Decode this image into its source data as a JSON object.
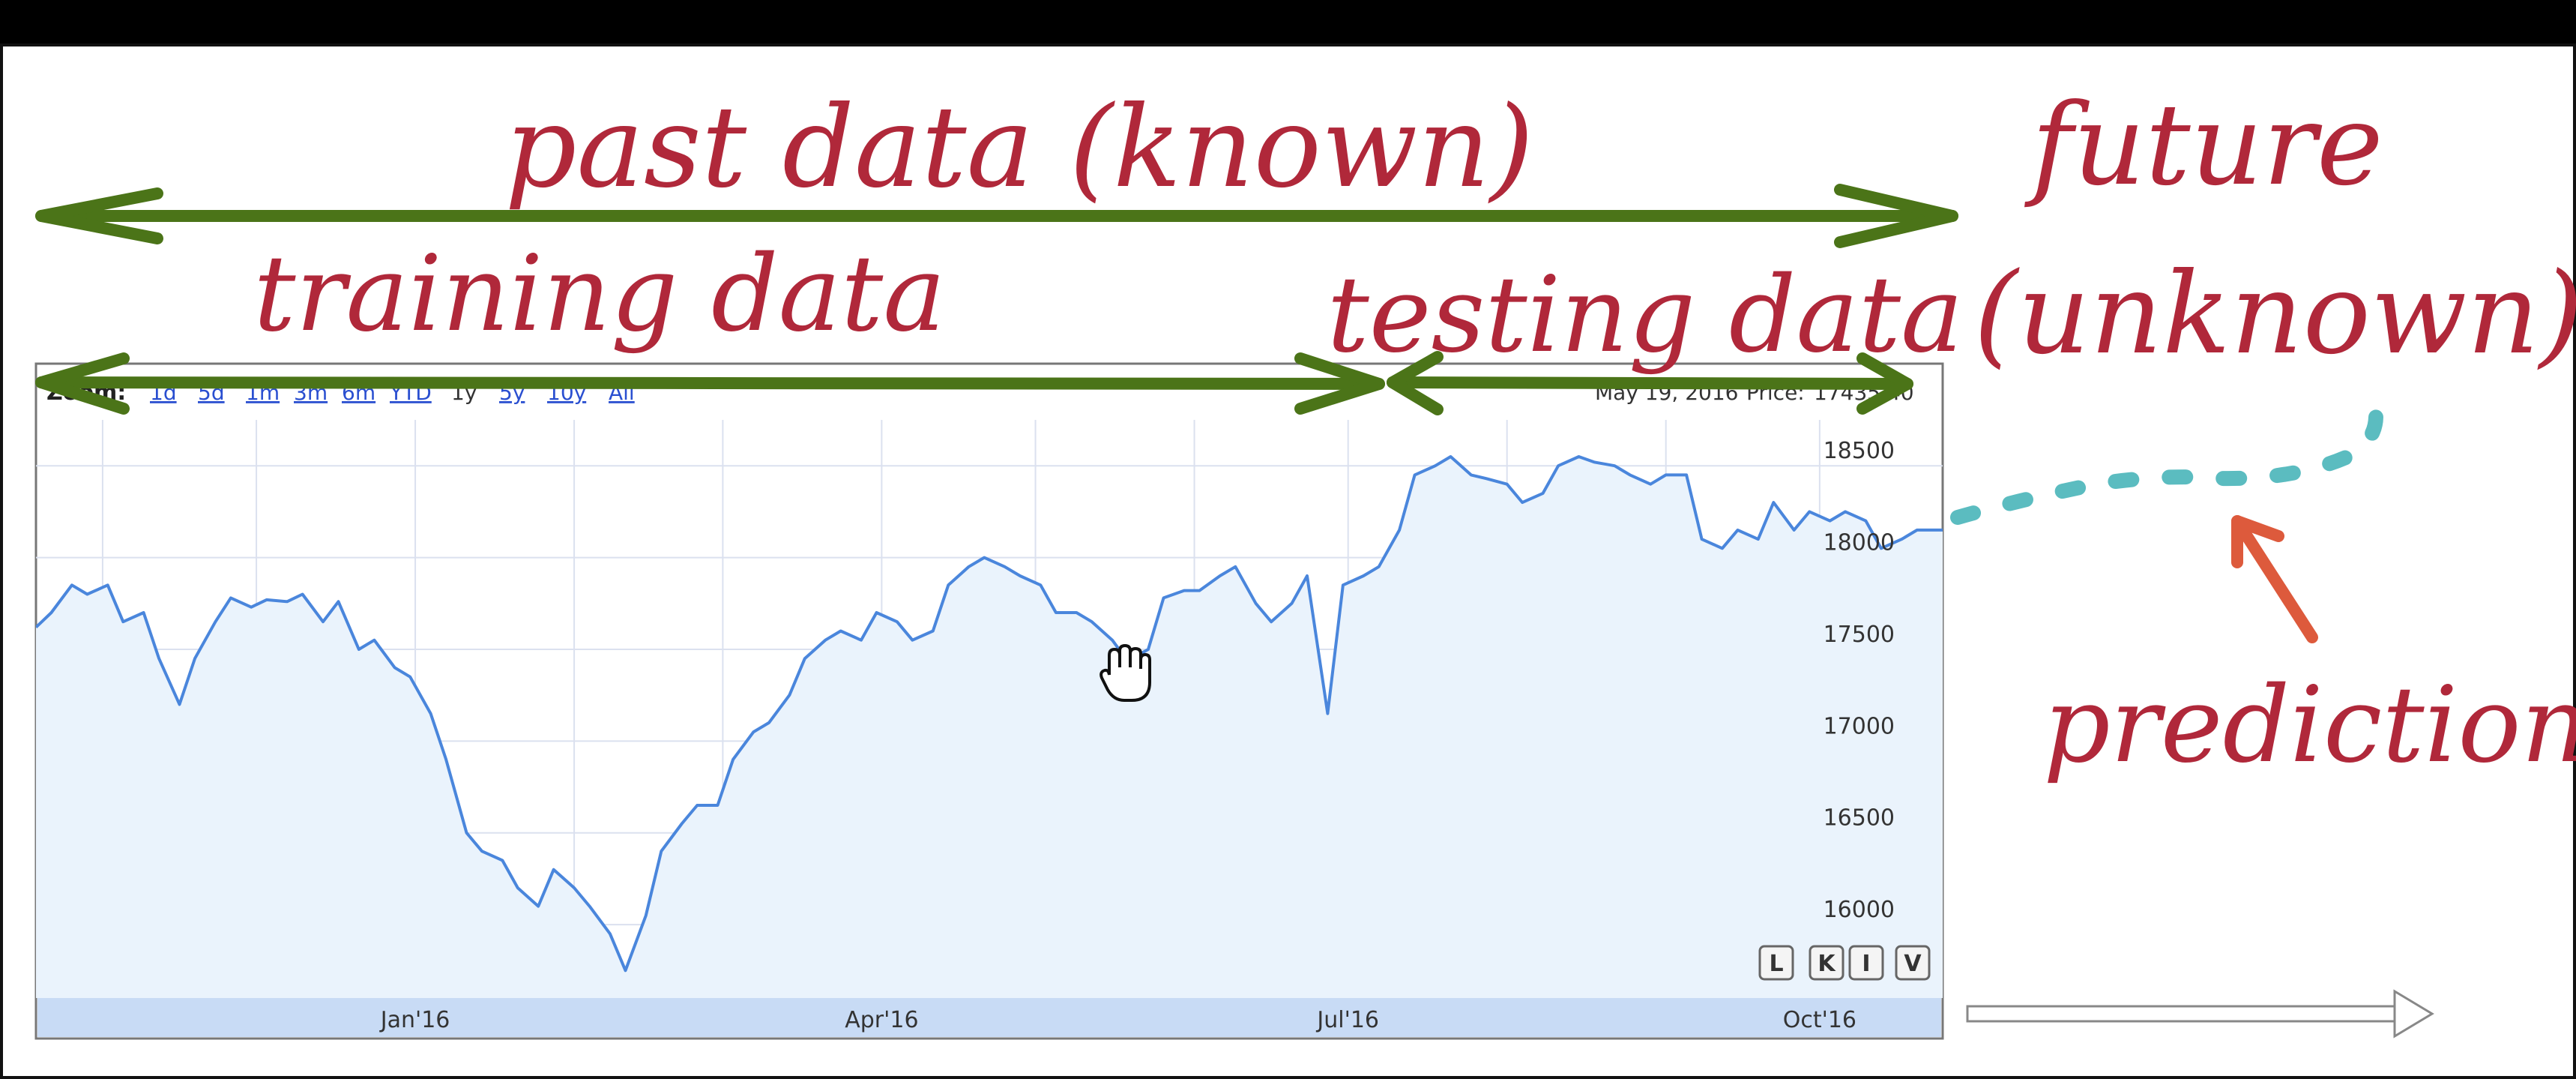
{
  "annotations": {
    "past": "past data (known)",
    "training": "training data",
    "testing": "testing data",
    "future_line1": "future",
    "future_line2": "(unknown)",
    "prediction": "prediction"
  },
  "toolbar": {
    "zoom_label": "Zoom:",
    "ranges": [
      "1d",
      "5d",
      "1m",
      "3m",
      "6m",
      "YTD",
      "1y",
      "5y",
      "10y",
      "All"
    ],
    "info_date": "May 19, 2016",
    "info_price_label": "Price:",
    "info_price_value": "17435.40"
  },
  "corner_buttons": [
    "L",
    "K",
    "I",
    "V"
  ],
  "colors": {
    "annotation_text": "#b0283a",
    "arrows": "#4b7418",
    "line": "#4a86dc",
    "fill": "#eaf3fc",
    "grid": "#dbe1ef",
    "navigator": "#c8dbf5",
    "prediction": "#5bbcc0",
    "prediction_arrow": "#dd5a3c"
  },
  "chart_data": {
    "type": "line",
    "title": "",
    "xlabel": "",
    "ylabel": "",
    "x_tick_labels": [
      "Jan'16",
      "Apr'16",
      "Jul'16",
      "Oct'16"
    ],
    "y_tick_labels": [
      "16000",
      "16500",
      "17000",
      "17500",
      "18000",
      "18500"
    ],
    "ylim": [
      15600,
      18750
    ],
    "xlim": [
      "2015-10-19",
      "2016-10-25"
    ],
    "grid": true,
    "legend": "none",
    "highlighted_point": {
      "x": "2016-05-19",
      "y": 17435.4
    },
    "series": [
      {
        "points": [
          [
            "2015-10-19",
            17620
          ],
          [
            "2015-10-22",
            17700
          ],
          [
            "2015-10-26",
            17850
          ],
          [
            "2015-10-29",
            17800
          ],
          [
            "2015-11-02",
            17850
          ],
          [
            "2015-11-05",
            17650
          ],
          [
            "2015-11-09",
            17700
          ],
          [
            "2015-11-12",
            17450
          ],
          [
            "2015-11-16",
            17200
          ],
          [
            "2015-11-19",
            17450
          ],
          [
            "2015-11-23",
            17650
          ],
          [
            "2015-11-26",
            17780
          ],
          [
            "2015-11-30",
            17730
          ],
          [
            "2015-12-03",
            17770
          ],
          [
            "2015-12-07",
            17760
          ],
          [
            "2015-12-10",
            17800
          ],
          [
            "2015-12-14",
            17650
          ],
          [
            "2015-12-17",
            17760
          ],
          [
            "2015-12-21",
            17500
          ],
          [
            "2015-12-24",
            17550
          ],
          [
            "2015-12-28",
            17400
          ],
          [
            "2015-12-31",
            17350
          ],
          [
            "2016-01-04",
            17150
          ],
          [
            "2016-01-07",
            16900
          ],
          [
            "2016-01-11",
            16500
          ],
          [
            "2016-01-14",
            16400
          ],
          [
            "2016-01-18",
            16350
          ],
          [
            "2016-01-21",
            16200
          ],
          [
            "2016-01-25",
            16100
          ],
          [
            "2016-01-28",
            16300
          ],
          [
            "2016-02-01",
            16200
          ],
          [
            "2016-02-04",
            16100
          ],
          [
            "2016-02-08",
            15950
          ],
          [
            "2016-02-11",
            15750
          ],
          [
            "2016-02-15",
            16050
          ],
          [
            "2016-02-18",
            16400
          ],
          [
            "2016-02-22",
            16550
          ],
          [
            "2016-02-25",
            16650
          ],
          [
            "2016-02-29",
            16650
          ],
          [
            "2016-03-03",
            16900
          ],
          [
            "2016-03-07",
            17050
          ],
          [
            "2016-03-10",
            17100
          ],
          [
            "2016-03-14",
            17250
          ],
          [
            "2016-03-17",
            17450
          ],
          [
            "2016-03-21",
            17550
          ],
          [
            "2016-03-24",
            17600
          ],
          [
            "2016-03-28",
            17550
          ],
          [
            "2016-03-31",
            17700
          ],
          [
            "2016-04-04",
            17650
          ],
          [
            "2016-04-07",
            17550
          ],
          [
            "2016-04-11",
            17600
          ],
          [
            "2016-04-14",
            17850
          ],
          [
            "2016-04-18",
            17950
          ],
          [
            "2016-04-21",
            18000
          ],
          [
            "2016-04-25",
            17950
          ],
          [
            "2016-04-28",
            17900
          ],
          [
            "2016-05-02",
            17850
          ],
          [
            "2016-05-05",
            17700
          ],
          [
            "2016-05-09",
            17700
          ],
          [
            "2016-05-12",
            17650
          ],
          [
            "2016-05-16",
            17550
          ],
          [
            "2016-05-19",
            17435.4
          ],
          [
            "2016-05-23",
            17500
          ],
          [
            "2016-05-26",
            17780
          ],
          [
            "2016-05-30",
            17820
          ],
          [
            "2016-06-02",
            17820
          ],
          [
            "2016-06-06",
            17900
          ],
          [
            "2016-06-09",
            17950
          ],
          [
            "2016-06-13",
            17750
          ],
          [
            "2016-06-16",
            17650
          ],
          [
            "2016-06-20",
            17750
          ],
          [
            "2016-06-23",
            17900
          ],
          [
            "2016-06-27",
            17150
          ],
          [
            "2016-06-30",
            17850
          ],
          [
            "2016-07-04",
            17900
          ],
          [
            "2016-07-07",
            17950
          ],
          [
            "2016-07-11",
            18150
          ],
          [
            "2016-07-14",
            18450
          ],
          [
            "2016-07-18",
            18500
          ],
          [
            "2016-07-21",
            18550
          ],
          [
            "2016-07-25",
            18450
          ],
          [
            "2016-07-28",
            18430
          ],
          [
            "2016-08-01",
            18400
          ],
          [
            "2016-08-04",
            18300
          ],
          [
            "2016-08-08",
            18350
          ],
          [
            "2016-08-11",
            18500
          ],
          [
            "2016-08-15",
            18550
          ],
          [
            "2016-08-18",
            18520
          ],
          [
            "2016-08-22",
            18500
          ],
          [
            "2016-08-25",
            18450
          ],
          [
            "2016-08-29",
            18400
          ],
          [
            "2016-09-01",
            18450
          ],
          [
            "2016-09-05",
            18450
          ],
          [
            "2016-09-08",
            18100
          ],
          [
            "2016-09-12",
            18050
          ],
          [
            "2016-09-15",
            18150
          ],
          [
            "2016-09-19",
            18100
          ],
          [
            "2016-09-22",
            18300
          ],
          [
            "2016-09-26",
            18150
          ],
          [
            "2016-09-29",
            18250
          ],
          [
            "2016-10-03",
            18200
          ],
          [
            "2016-10-06",
            18250
          ],
          [
            "2016-10-10",
            18200
          ],
          [
            "2016-10-13",
            18050
          ],
          [
            "2016-10-17",
            18100
          ],
          [
            "2016-10-20",
            18150
          ],
          [
            "2016-10-25",
            18150
          ]
        ]
      }
    ]
  }
}
